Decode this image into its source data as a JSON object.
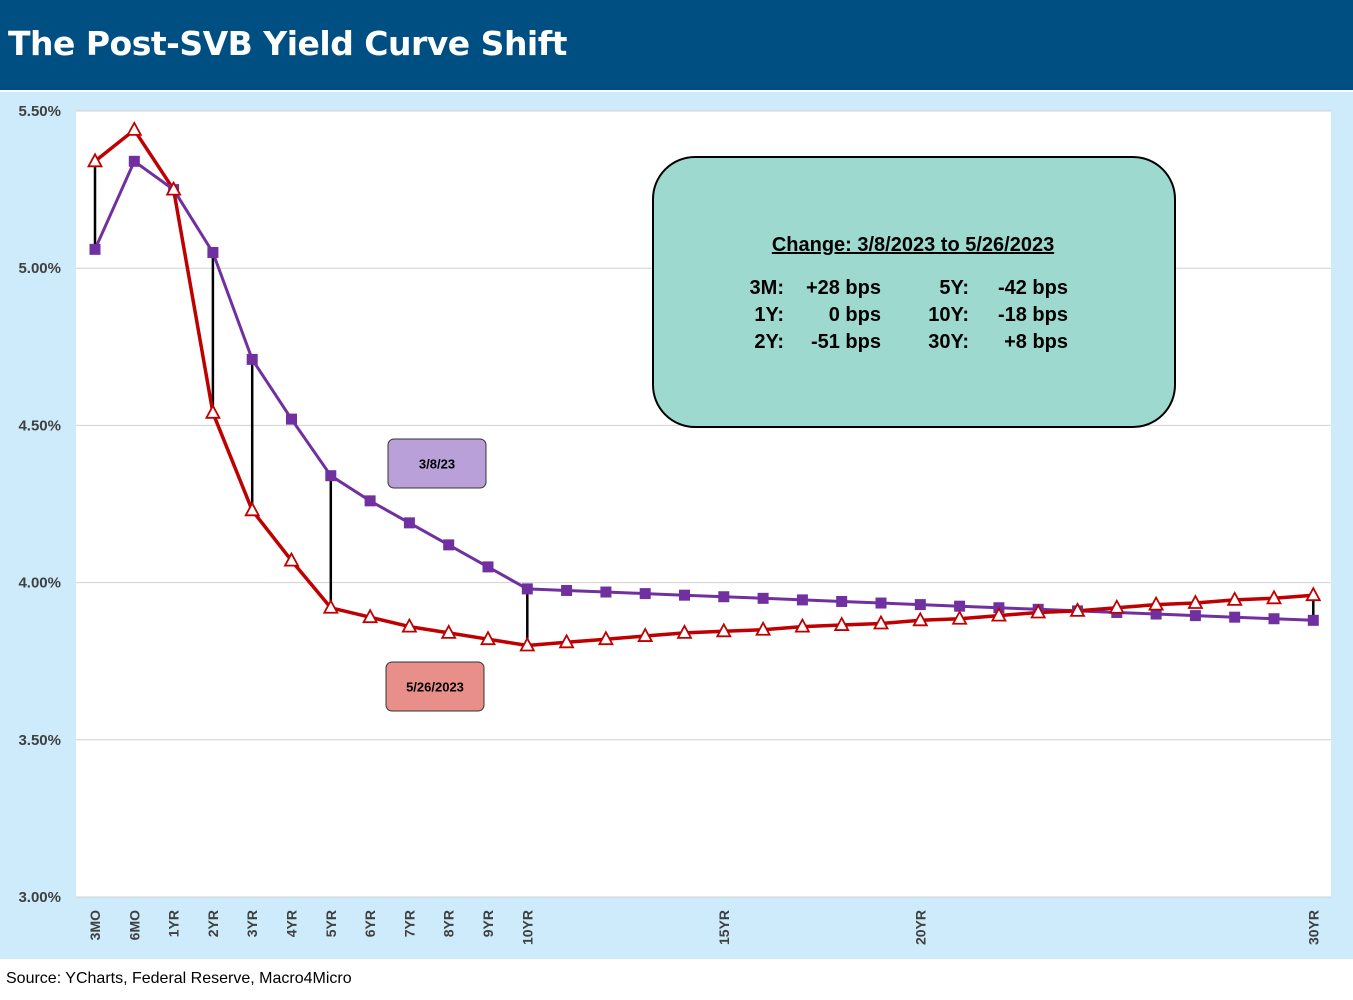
{
  "header": {
    "title": "The Post-SVB Yield Curve Shift"
  },
  "footer": {
    "source": "Source: YCharts, Federal Reserve, Macro4Micro"
  },
  "chart_data": {
    "type": "line",
    "title": "The Post-SVB Yield Curve Shift",
    "xlabel": "",
    "ylabel": "",
    "ylim": [
      3.0,
      5.5
    ],
    "y_ticks": [
      "3.00%",
      "3.50%",
      "4.00%",
      "4.50%",
      "5.00%",
      "5.50%"
    ],
    "y_tick_values": [
      3.0,
      3.5,
      4.0,
      4.5,
      5.0,
      5.5
    ],
    "x_ticks": [
      "3MO",
      "6MO",
      "1YR",
      "2YR",
      "3YR",
      "4YR",
      "5YR",
      "6YR",
      "7YR",
      "8YR",
      "9YR",
      "10YR",
      "15YR",
      "20YR",
      "30YR"
    ],
    "x_tick_index": [
      0,
      1,
      2,
      3,
      4,
      5,
      6,
      7,
      8,
      9,
      10,
      11,
      16,
      21,
      31
    ],
    "grid": true,
    "series": [
      {
        "name": "3/8/23",
        "color": "#7030a0",
        "marker": "square",
        "values": [
          5.06,
          5.34,
          5.25,
          5.05,
          4.71,
          4.52,
          4.34,
          4.26,
          4.19,
          4.12,
          4.05,
          3.98,
          3.975,
          3.97,
          3.965,
          3.96,
          3.955,
          3.95,
          3.945,
          3.94,
          3.935,
          3.93,
          3.925,
          3.92,
          3.915,
          3.91,
          3.905,
          3.9,
          3.895,
          3.89,
          3.885,
          3.88
        ]
      },
      {
        "name": "5/26/2023",
        "color": "#c00000",
        "marker": "triangle",
        "values": [
          5.34,
          5.44,
          5.25,
          4.54,
          4.23,
          4.07,
          3.92,
          3.89,
          3.86,
          3.84,
          3.82,
          3.8,
          3.81,
          3.82,
          3.83,
          3.84,
          3.845,
          3.85,
          3.86,
          3.865,
          3.87,
          3.88,
          3.885,
          3.895,
          3.905,
          3.91,
          3.92,
          3.93,
          3.935,
          3.945,
          3.95,
          3.96
        ]
      }
    ],
    "legend_labels": [
      {
        "text": "3/8/23",
        "color": "#b9a0d8"
      },
      {
        "text": "5/26/2023",
        "color": "#e98f8a"
      }
    ],
    "annotation": {
      "heading": "Change: 3/8/2023 to 5/26/2023",
      "rows": [
        {
          "l_label": "3M:",
          "l_value": "+28 bps",
          "r_label": "5Y:",
          "r_value": "-42 bps"
        },
        {
          "l_label": "1Y:",
          "l_value": "0 bps",
          "r_label": "10Y:",
          "r_value": "-18 bps"
        },
        {
          "l_label": "2Y:",
          "l_value": "-51 bps",
          "r_label": "30Y:",
          "r_value": "+8 bps"
        }
      ],
      "color": "#9ed9cf"
    },
    "change_connectors_at": [
      0,
      3,
      4,
      6,
      11,
      31
    ]
  }
}
